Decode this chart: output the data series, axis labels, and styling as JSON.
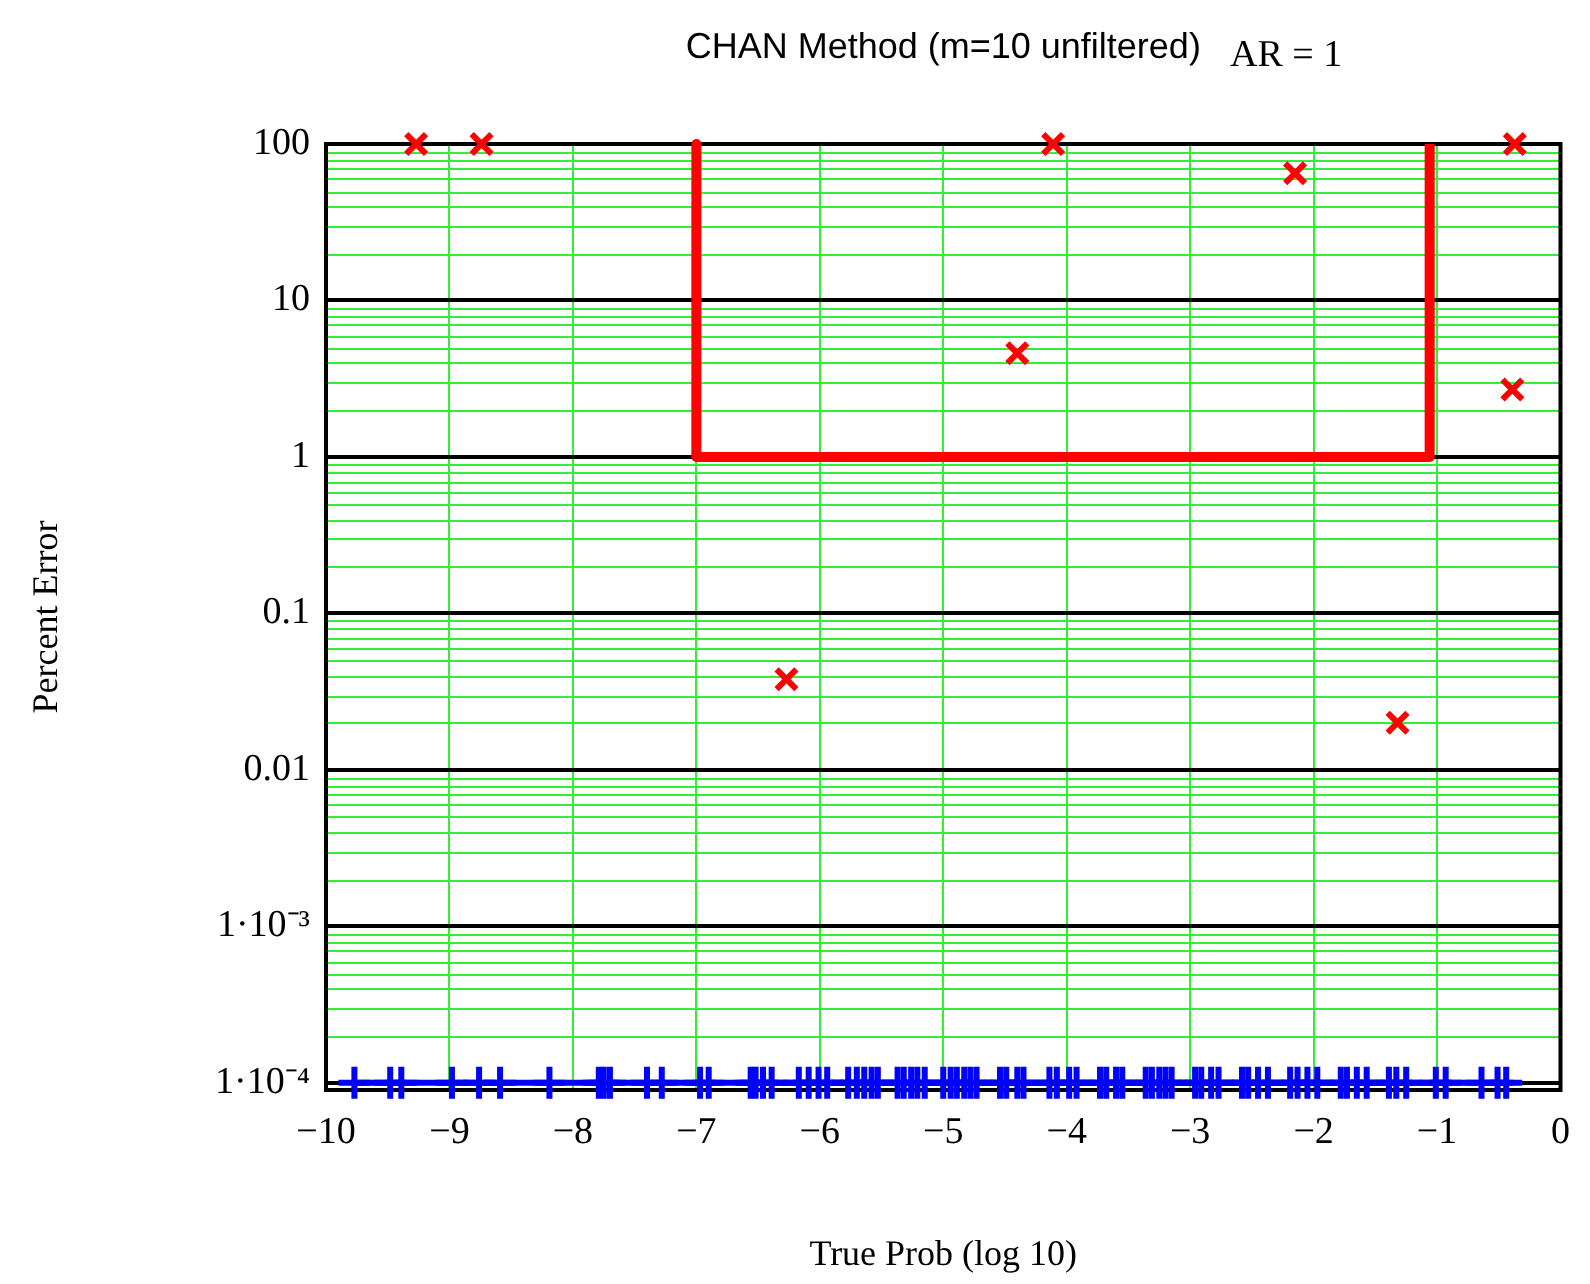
{
  "chart_data": {
    "type": "scatter",
    "title": "CHAN Method (m=10 unfiltered)",
    "annotations": [
      "AR = 1"
    ],
    "xlabel": "True Prob (log 10)",
    "ylabel": "Percent Error",
    "xlim": [
      -10,
      0
    ],
    "xticks": [
      {
        "value": -10,
        "label": "−10"
      },
      {
        "value": -9,
        "label": "−9"
      },
      {
        "value": -8,
        "label": "−8"
      },
      {
        "value": -7,
        "label": "−7"
      },
      {
        "value": -6,
        "label": "−6"
      },
      {
        "value": -5,
        "label": "−5"
      },
      {
        "value": -4,
        "label": "−4"
      },
      {
        "value": -3,
        "label": "−3"
      },
      {
        "value": -2,
        "label": "−2"
      },
      {
        "value": -1,
        "label": "−1"
      },
      0
    ],
    "ylim": [
      9e-05,
      100
    ],
    "yticks": [
      {
        "value": 0.0001,
        "label": "1·10⁻⁴"
      },
      {
        "value": 0.001,
        "label": "1·10⁻³"
      },
      0.01,
      0.1,
      1,
      10,
      100
    ],
    "log": "y",
    "grid": true,
    "legend": false,
    "series": [
      {
        "type": "line",
        "color": "#ff0000",
        "marker": "none",
        "line_style": "solid",
        "x": [
          -7,
          -7,
          -1.06,
          -1.06
        ],
        "values": [
          100,
          1,
          1,
          100
        ]
      },
      {
        "color": "#ff0000",
        "marker": "cross",
        "x": [
          -9.27,
          -8.74,
          -6.27,
          -4.4,
          -4.11,
          -2.15,
          -1.32,
          -0.39,
          -0.37
        ],
        "values": [
          100,
          100,
          0.038,
          4.6,
          100,
          65,
          0.02,
          2.7,
          100
        ]
      },
      {
        "type": "line",
        "color": "#0000ff",
        "marker": "cross",
        "line_style": "solid",
        "x": [
          -9.77,
          -9.48,
          -9.39,
          -8.98,
          -8.76,
          -8.59,
          -8.19,
          -7.79,
          -7.75,
          -7.7,
          -7.4,
          -7.28,
          -6.97,
          -6.9,
          -6.56,
          -6.52,
          -6.46,
          -6.39,
          -6.17,
          -6.09,
          -6.01,
          -5.94,
          -5.77,
          -5.7,
          -5.64,
          -5.58,
          -5.53,
          -5.37,
          -5.32,
          -5.26,
          -5.21,
          -5.15,
          -5,
          -4.94,
          -4.89,
          -4.83,
          -4.78,
          -4.73,
          -4.54,
          -4.49,
          -4.4,
          -4.35,
          -4.14,
          -4.08,
          -3.98,
          -3.92,
          -3.73,
          -3.68,
          -3.6,
          -3.55,
          -3.36,
          -3.31,
          -3.25,
          -3.2,
          -3.15,
          -2.96,
          -2.91,
          -2.83,
          -2.77,
          -2.58,
          -2.53,
          -2.45,
          -2.37,
          -2.19,
          -2.13,
          -2.05,
          -1.97,
          -1.78,
          -1.73,
          -1.65,
          -1.57,
          -1.39,
          -1.33,
          -1.25,
          -1.01,
          -0.93,
          -0.64,
          -0.51,
          -0.44
        ],
        "values": [
          0.0001,
          0.0001,
          0.0001,
          0.0001,
          0.0001,
          0.0001,
          0.0001,
          0.0001,
          0.0001,
          0.0001,
          0.0001,
          0.0001,
          0.0001,
          0.0001,
          0.0001,
          0.0001,
          0.0001,
          0.0001,
          0.0001,
          0.0001,
          0.0001,
          0.0001,
          0.0001,
          0.0001,
          0.0001,
          0.0001,
          0.0001,
          0.0001,
          0.0001,
          0.0001,
          0.0001,
          0.0001,
          0.0001,
          0.0001,
          0.0001,
          0.0001,
          0.0001,
          0.0001,
          0.0001,
          0.0001,
          0.0001,
          0.0001,
          0.0001,
          0.0001,
          0.0001,
          0.0001,
          0.0001,
          0.0001,
          0.0001,
          0.0001,
          0.0001,
          0.0001,
          0.0001,
          0.0001,
          0.0001,
          0.0001,
          0.0001,
          0.0001,
          0.0001,
          0.0001,
          0.0001,
          0.0001,
          0.0001,
          0.0001,
          0.0001,
          0.0001,
          0.0001,
          0.0001,
          0.0001,
          0.0001,
          0.0001,
          0.0001,
          0.0001,
          0.0001,
          0.0001,
          0.0001,
          0.0001,
          0.0001,
          0.0001
        ]
      }
    ]
  }
}
